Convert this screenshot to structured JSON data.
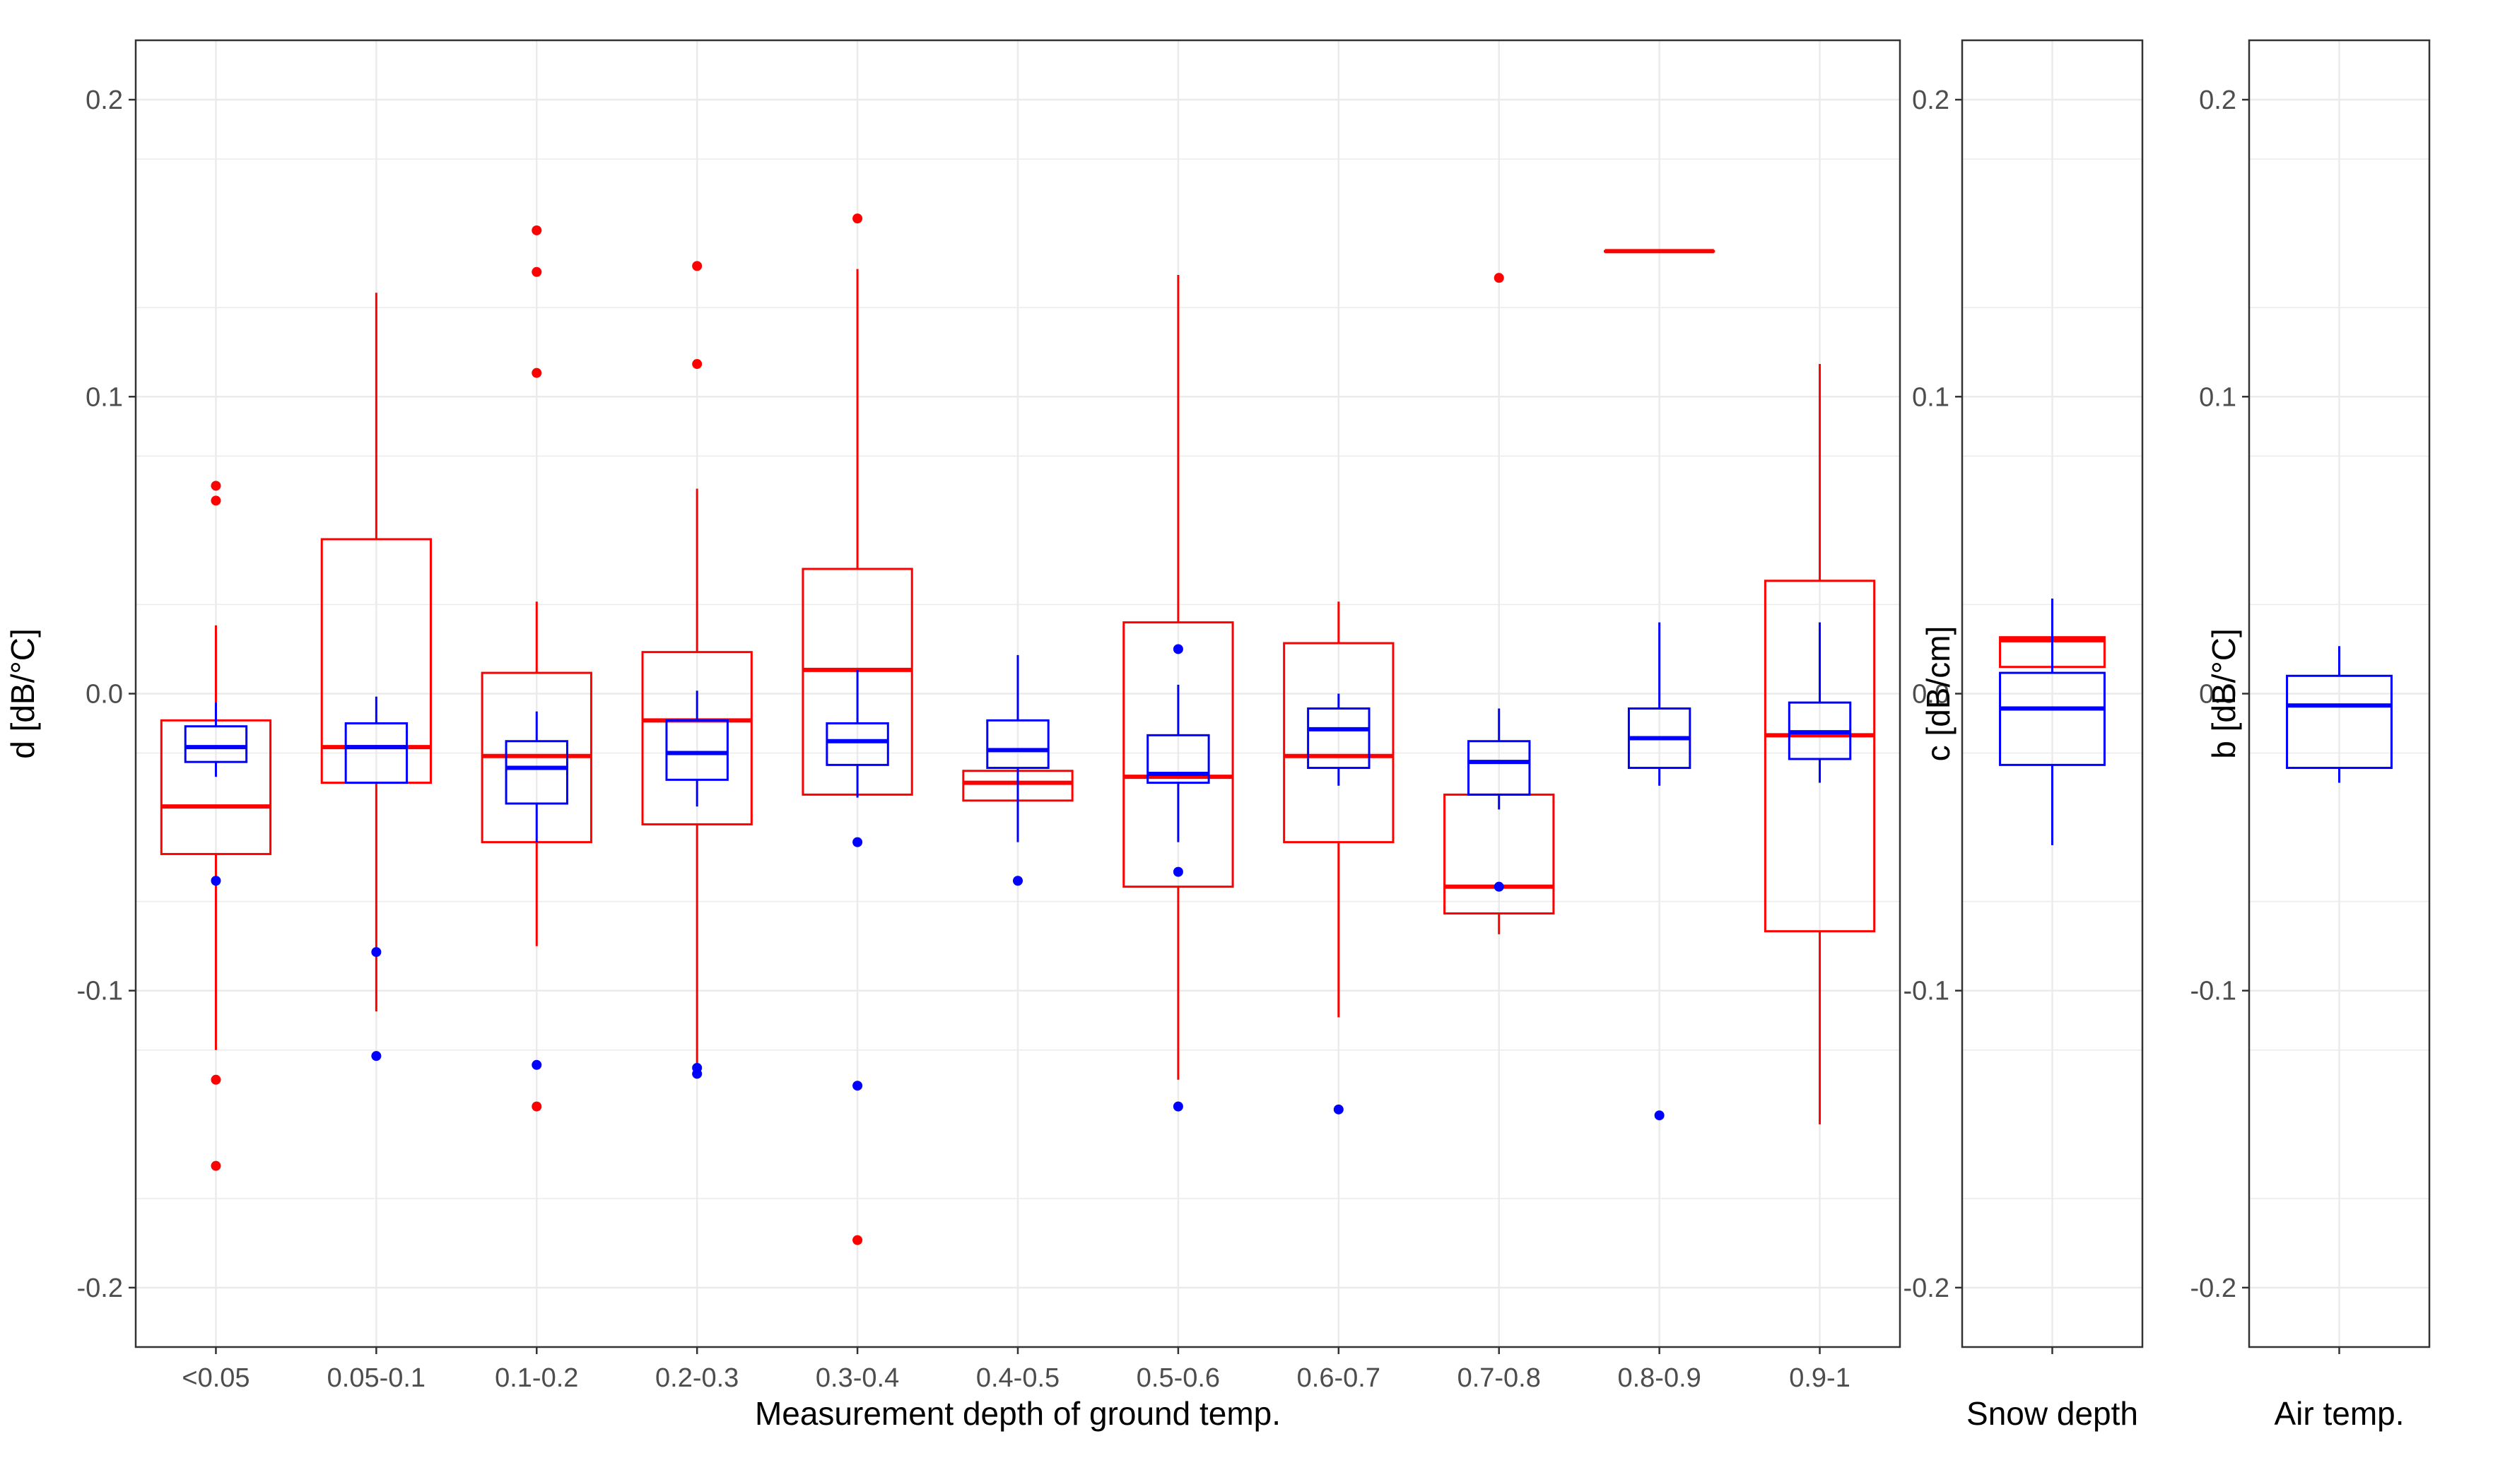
{
  "colors": {
    "series_a": "#ff0000",
    "series_b": "#0000ff",
    "grid": "#ebebeb",
    "border": "#333333",
    "text": "#4d4d4d"
  },
  "chart_data": [
    {
      "type": "boxplot",
      "panel": "ground-temperature",
      "xlabel": "Measurement depth of ground temp.",
      "ylabel": "d [dB/°C]",
      "ylim": [
        -0.22,
        0.22
      ],
      "yticks": [
        0.2,
        0.1,
        0.0,
        -0.1,
        -0.2
      ],
      "ytick_labels": [
        "0.2",
        "0.1",
        "0.0",
        "-0.1",
        "-0.2"
      ],
      "grid": true,
      "categories": [
        "<0.05",
        "0.05-0.1",
        "0.1-0.2",
        "0.2-0.3",
        "0.3-0.4",
        "0.4-0.5",
        "0.5-0.6",
        "0.6-0.7",
        "0.7-0.8",
        "0.8-0.9",
        "0.9-1"
      ],
      "series": [
        {
          "name": "red",
          "color": "#ff0000",
          "boxes": [
            {
              "lw": -0.12,
              "q1": -0.054,
              "med": -0.038,
              "q3": -0.009,
              "uw": 0.023,
              "outliers": [
                0.07,
                0.065,
                -0.13,
                -0.159
              ]
            },
            {
              "lw": -0.107,
              "q1": -0.03,
              "med": -0.018,
              "q3": 0.052,
              "uw": 0.135,
              "outliers": []
            },
            {
              "lw": -0.085,
              "q1": -0.05,
              "med": -0.021,
              "q3": 0.007,
              "uw": 0.031,
              "outliers": [
                0.156,
                0.142,
                0.108,
                -0.139
              ]
            },
            {
              "lw": -0.125,
              "q1": -0.044,
              "med": -0.009,
              "q3": 0.014,
              "uw": 0.069,
              "outliers": [
                0.144,
                0.111
              ]
            },
            {
              "lw": -0.034,
              "q1": -0.034,
              "med": 0.008,
              "q3": 0.042,
              "uw": 0.143,
              "outliers": [
                0.16,
                -0.184
              ]
            },
            {
              "lw": -0.036,
              "q1": -0.036,
              "med": -0.03,
              "q3": -0.026,
              "uw": -0.026,
              "outliers": []
            },
            {
              "lw": -0.13,
              "q1": -0.065,
              "med": -0.028,
              "q3": 0.024,
              "uw": 0.141,
              "outliers": []
            },
            {
              "lw": -0.109,
              "q1": -0.05,
              "med": -0.021,
              "q3": 0.017,
              "uw": 0.031,
              "outliers": []
            },
            {
              "lw": -0.081,
              "q1": -0.074,
              "med": -0.065,
              "q3": -0.034,
              "uw": -0.034,
              "outliers": [
                0.14
              ]
            },
            {
              "lw": 0.149,
              "q1": 0.149,
              "med": 0.149,
              "q3": 0.149,
              "uw": 0.149,
              "outliers": []
            },
            {
              "lw": -0.145,
              "q1": -0.08,
              "med": -0.014,
              "q3": 0.038,
              "uw": 0.111,
              "outliers": []
            }
          ]
        },
        {
          "name": "blue",
          "color": "#0000ff",
          "boxes": [
            {
              "lw": -0.028,
              "q1": -0.023,
              "med": -0.018,
              "q3": -0.011,
              "uw": -0.003,
              "outliers": [
                -0.063
              ]
            },
            {
              "lw": -0.03,
              "q1": -0.03,
              "med": -0.018,
              "q3": -0.01,
              "uw": -0.001,
              "outliers": [
                -0.087,
                -0.122
              ]
            },
            {
              "lw": -0.05,
              "q1": -0.037,
              "med": -0.025,
              "q3": -0.016,
              "uw": -0.006,
              "outliers": [
                -0.125
              ]
            },
            {
              "lw": -0.038,
              "q1": -0.029,
              "med": -0.02,
              "q3": -0.009,
              "uw": 0.001,
              "outliers": [
                -0.126,
                -0.128
              ]
            },
            {
              "lw": -0.035,
              "q1": -0.024,
              "med": -0.016,
              "q3": -0.01,
              "uw": 0.008,
              "outliers": [
                -0.05,
                -0.132
              ]
            },
            {
              "lw": -0.05,
              "q1": -0.025,
              "med": -0.019,
              "q3": -0.009,
              "uw": 0.013,
              "outliers": [
                -0.063
              ]
            },
            {
              "lw": -0.05,
              "q1": -0.03,
              "med": -0.027,
              "q3": -0.014,
              "uw": 0.003,
              "outliers": [
                0.015,
                -0.06,
                -0.139
              ]
            },
            {
              "lw": -0.031,
              "q1": -0.025,
              "med": -0.012,
              "q3": -0.005,
              "uw": 0.0,
              "outliers": [
                -0.14
              ]
            },
            {
              "lw": -0.039,
              "q1": -0.034,
              "med": -0.023,
              "q3": -0.016,
              "uw": -0.005,
              "outliers": [
                -0.065
              ]
            },
            {
              "lw": -0.031,
              "q1": -0.025,
              "med": -0.015,
              "q3": -0.005,
              "uw": 0.024,
              "outliers": [
                -0.142
              ]
            },
            {
              "lw": -0.03,
              "q1": -0.022,
              "med": -0.013,
              "q3": -0.003,
              "uw": 0.024,
              "outliers": []
            }
          ]
        }
      ]
    },
    {
      "type": "boxplot",
      "panel": "snow-depth",
      "xlabel": "Snow depth",
      "ylabel": "c [dB/cm]",
      "ylim": [
        -0.22,
        0.22
      ],
      "yticks": [
        0.2,
        0.1,
        0.0,
        -0.1,
        -0.2
      ],
      "ytick_labels": [
        "0.2",
        "0.1",
        "0.0",
        "-0.1",
        "-0.2"
      ],
      "grid": true,
      "categories": [
        ""
      ],
      "series": [
        {
          "name": "red",
          "color": "#ff0000",
          "boxes": [
            {
              "lw": 0.009,
              "q1": 0.009,
              "med": 0.018,
              "q3": 0.019,
              "uw": 0.019,
              "outliers": []
            }
          ]
        },
        {
          "name": "blue",
          "color": "#0000ff",
          "boxes": [
            {
              "lw": -0.051,
              "q1": -0.024,
              "med": -0.005,
              "q3": 0.007,
              "uw": 0.032,
              "outliers": []
            }
          ]
        }
      ]
    },
    {
      "type": "boxplot",
      "panel": "air-temperature",
      "xlabel": "Air temp.",
      "ylabel": "b [dB/°C]",
      "ylim": [
        -0.22,
        0.22
      ],
      "yticks": [
        0.2,
        0.1,
        0.0,
        -0.1,
        -0.2
      ],
      "ytick_labels": [
        "0.2",
        "0.1",
        "0.0",
        "-0.1",
        "-0.2"
      ],
      "grid": true,
      "categories": [
        ""
      ],
      "series": [
        {
          "name": "blue",
          "color": "#0000ff",
          "boxes": [
            {
              "lw": -0.03,
              "q1": -0.025,
              "med": -0.004,
              "q3": 0.006,
              "uw": 0.016,
              "outliers": []
            }
          ]
        }
      ]
    }
  ]
}
